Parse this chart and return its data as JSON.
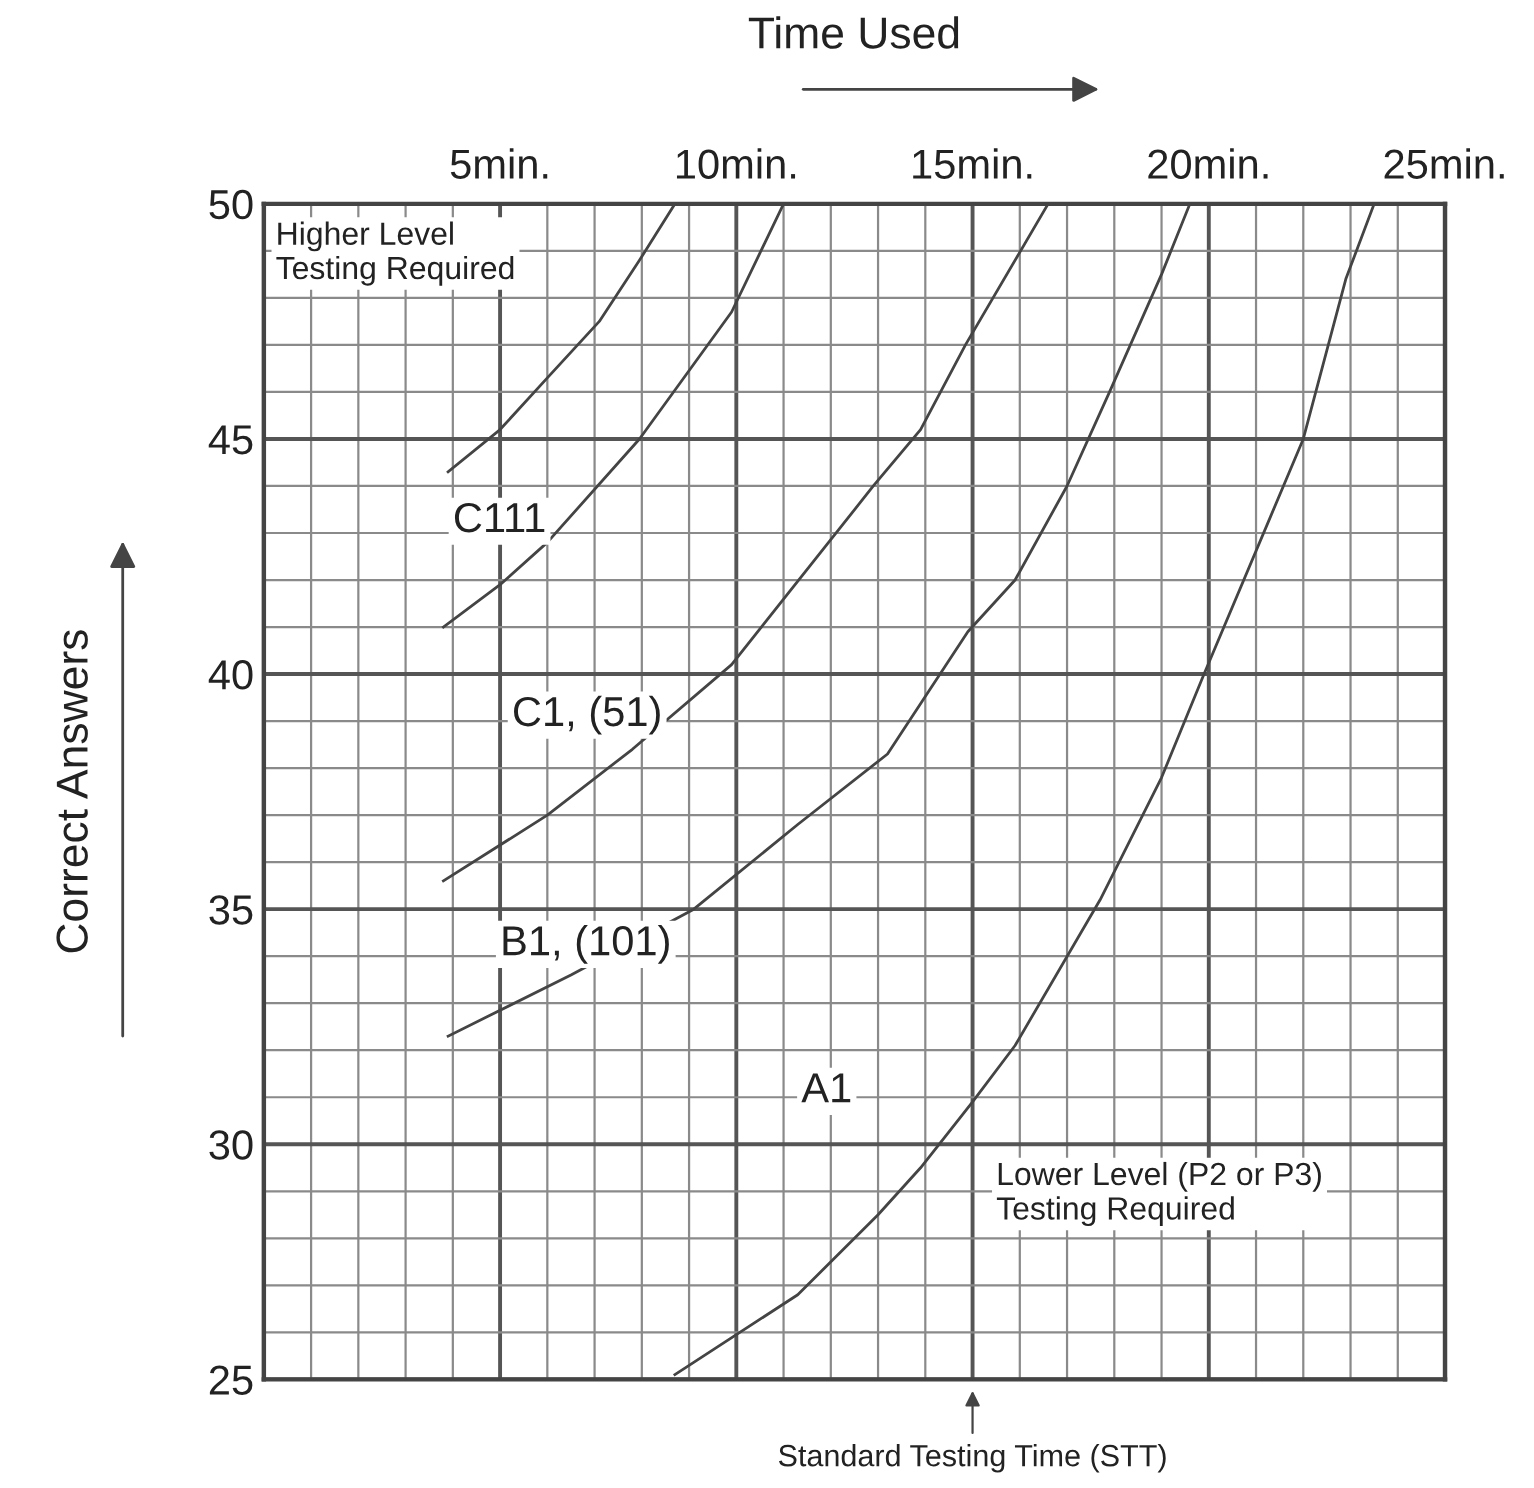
{
  "chart_data": {
    "type": "line",
    "xlabel": "Time Used",
    "ylabel": "Correct Answers",
    "xlim": [
      0,
      25
    ],
    "ylim": [
      25,
      50
    ],
    "xticks": [
      {
        "value": 5,
        "label": "5min."
      },
      {
        "value": 10,
        "label": "10min."
      },
      {
        "value": 15,
        "label": "15min."
      },
      {
        "value": 20,
        "label": "20min."
      },
      {
        "value": 25,
        "label": "25min."
      }
    ],
    "yticks": [
      25,
      30,
      35,
      40,
      45,
      50
    ],
    "grid": true,
    "marker": "none",
    "line_style": "solid",
    "series": [
      {
        "color": "#444444",
        "x": [
          3.9,
          5.0,
          6.0,
          7.1,
          7.95,
          8.7
        ],
        "values": [
          44.3,
          45.2,
          46.3,
          47.5,
          48.8,
          50
        ]
      },
      {
        "color": "#444444",
        "x": [
          3.8,
          5.0,
          6.0,
          7.95,
          9.9,
          11.0
        ],
        "values": [
          41.0,
          41.9,
          42.8,
          45.0,
          47.7,
          50
        ]
      },
      {
        "color": "#444444",
        "x": [
          3.8,
          6.0,
          7.8,
          9.9,
          12.9,
          13.9,
          14.85,
          16.6
        ],
        "values": [
          35.6,
          37.0,
          38.4,
          40.2,
          44.0,
          45.2,
          47.0,
          50
        ]
      },
      {
        "color": "#444444",
        "x": [
          3.9,
          6.5,
          9.1,
          11.3,
          13.2,
          14.9,
          15.9,
          17.0,
          17.9,
          19.0,
          19.6
        ],
        "values": [
          32.3,
          33.6,
          35.0,
          36.8,
          38.3,
          40.9,
          42.0,
          44.0,
          46.0,
          48.5,
          50
        ]
      },
      {
        "color": "#444444",
        "x": [
          8.7,
          11.3,
          13.0,
          13.9,
          15.0,
          15.9,
          17.7,
          19.0,
          19.9,
          22.0,
          22.9,
          23.5
        ],
        "values": [
          25.1,
          26.8,
          28.5,
          29.5,
          30.9,
          32.1,
          35.2,
          37.8,
          40.0,
          45.0,
          48.4,
          50
        ]
      }
    ],
    "annotations": [
      "C111",
      "C1, (51)",
      "B1, (101)",
      "A1",
      "Higher Level\nTesting Required",
      "Lower Level (P2 or P3)\nTesting Required",
      "Standard Testing Time (STT)"
    ]
  }
}
